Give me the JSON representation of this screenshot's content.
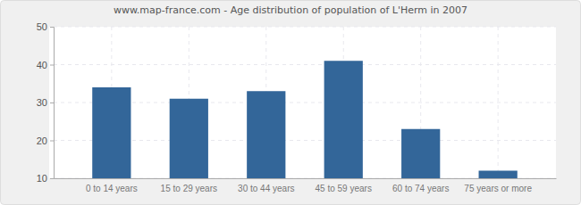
{
  "chart_data": {
    "type": "bar",
    "title": "www.map-france.com - Age distribution of population of L'Herm in 2007",
    "categories": [
      "0 to 14 years",
      "15 to 29 years",
      "30 to 44 years",
      "45 to 59 years",
      "60 to 74 years",
      "75 years or more"
    ],
    "values": [
      34,
      31,
      33,
      41,
      23,
      12
    ],
    "color": "#336699",
    "ylim": [
      10,
      50
    ],
    "yticks": [
      10,
      20,
      30,
      40,
      50
    ],
    "grid": true
  }
}
